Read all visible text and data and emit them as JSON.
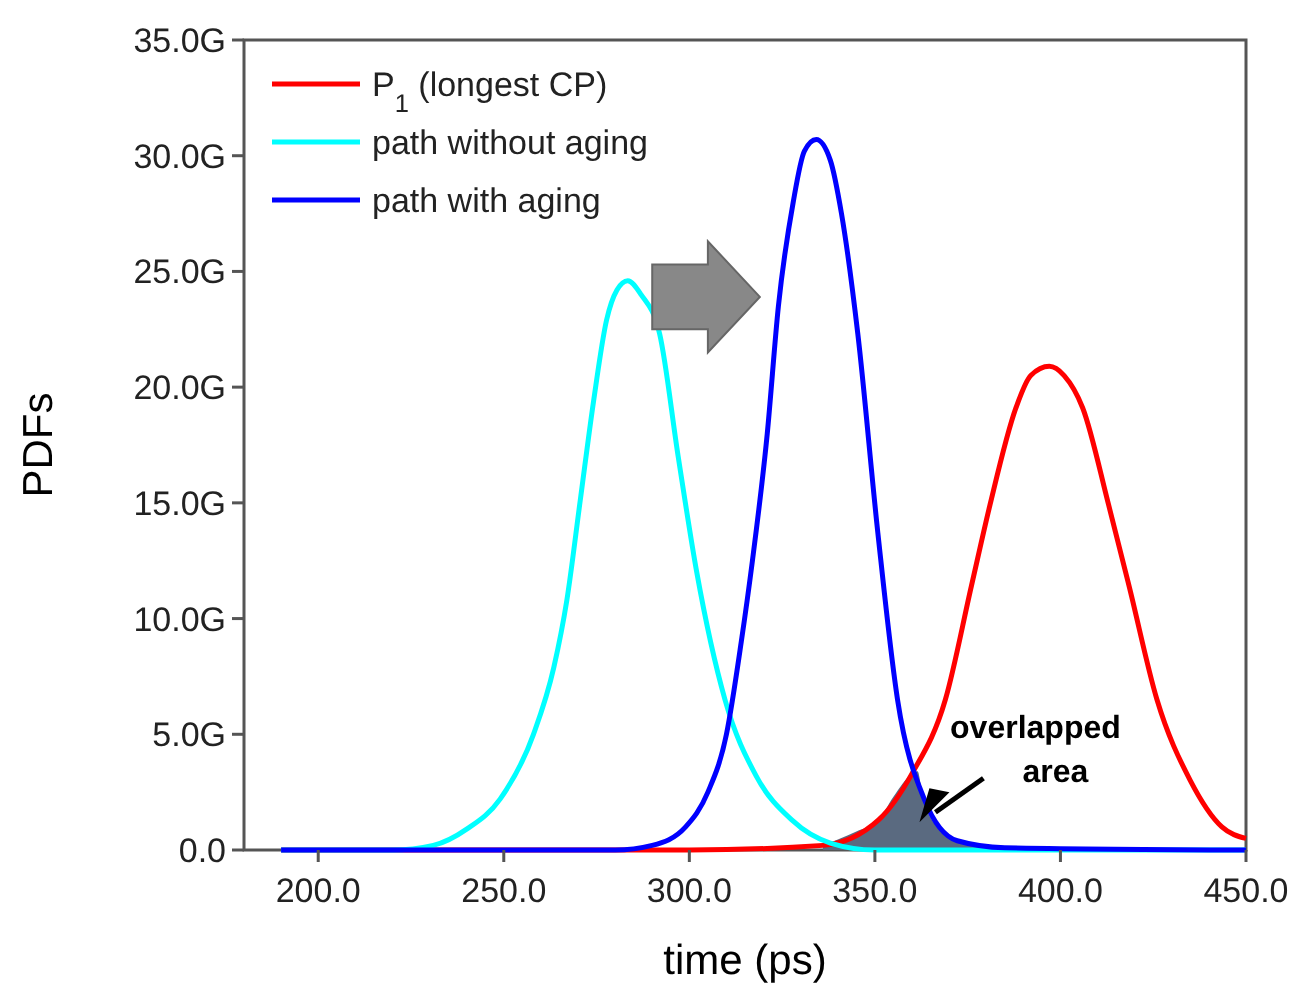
{
  "chart_data": {
    "type": "line",
    "xlabel": "time (ps)",
    "ylabel": "PDFs",
    "legend": "top left",
    "grid": false,
    "marker": "none",
    "line_style": "solid",
    "xlim": [
      180,
      450
    ],
    "ylim": [
      0,
      35
    ],
    "xticks": [
      {
        "value": 200,
        "label": "200.0"
      },
      {
        "value": 250,
        "label": "250.0"
      },
      {
        "value": 300,
        "label": "300.0"
      },
      {
        "value": 350,
        "label": "350.0"
      },
      {
        "value": 400,
        "label": "400.0"
      },
      {
        "value": 450,
        "label": "450.0"
      }
    ],
    "yticks": [
      {
        "value": 0,
        "label": "0.0"
      },
      {
        "value": 5,
        "label": "5.0G"
      },
      {
        "value": 10,
        "label": "10.0G"
      },
      {
        "value": 15,
        "label": "15.0G"
      },
      {
        "value": 20,
        "label": "20.0G"
      },
      {
        "value": 25,
        "label": "25.0G"
      },
      {
        "value": 30,
        "label": "30.0G"
      },
      {
        "value": 35,
        "label": "35.0G"
      }
    ],
    "series": [
      {
        "type": "area",
        "color": "#5a6a80",
        "x": [
          336,
          345,
          351,
          355,
          360,
          361.5,
          363,
          368,
          372,
          380
        ],
        "values": [
          0.2,
          0.8,
          1.3,
          2.3,
          3.3,
          3.4,
          2.2,
          0.8,
          0.4,
          0.1
        ]
      },
      {
        "name": "P$_{1}$ (longest CP)",
        "color": "#ff0000",
        "x": [
          190,
          300,
          336,
          351,
          360,
          369,
          376,
          381,
          388,
          392,
          397,
          401,
          406,
          413,
          418.5,
          426,
          435,
          443.5,
          450
        ],
        "values": [
          0,
          0,
          0.2,
          1.3,
          3.3,
          6.5,
          11.4,
          14.9,
          19.1,
          20.5,
          20.9,
          20.5,
          19.1,
          14.9,
          11.4,
          6.5,
          3,
          1,
          0.5
        ]
      },
      {
        "name": "path without aging",
        "color": "#00ffff",
        "x": [
          190,
          220,
          231,
          240,
          249,
          258,
          263.5,
          267,
          270.6,
          274.2,
          277.7,
          280.5,
          283.4,
          287,
          292,
          297,
          302,
          309.6,
          318,
          327.6,
          338,
          350,
          450
        ],
        "values": [
          0,
          0,
          0.2,
          0.9,
          2.2,
          5,
          7.9,
          10.8,
          15.1,
          19.4,
          22.9,
          24.2,
          24.6,
          24,
          22.3,
          17,
          12,
          6.5,
          3.2,
          1.3,
          0.3,
          0,
          0
        ]
      },
      {
        "name": "path with aging",
        "color": "#0000ff",
        "x": [
          190,
          280,
          290,
          299,
          305,
          310,
          314,
          317,
          321,
          324,
          328,
          331,
          334.2,
          338,
          341,
          345.4,
          350.8,
          356.1,
          363.3,
          372.2,
          385,
          450
        ],
        "values": [
          0,
          0,
          0.2,
          1,
          2.5,
          5,
          9,
          12.5,
          18,
          23.5,
          28,
          30.2,
          30.7,
          29.8,
          27.5,
          22.3,
          13.7,
          6.5,
          2.2,
          0.4,
          0.1,
          0
        ]
      }
    ],
    "annotations": [
      "overlapped area"
    ]
  }
}
